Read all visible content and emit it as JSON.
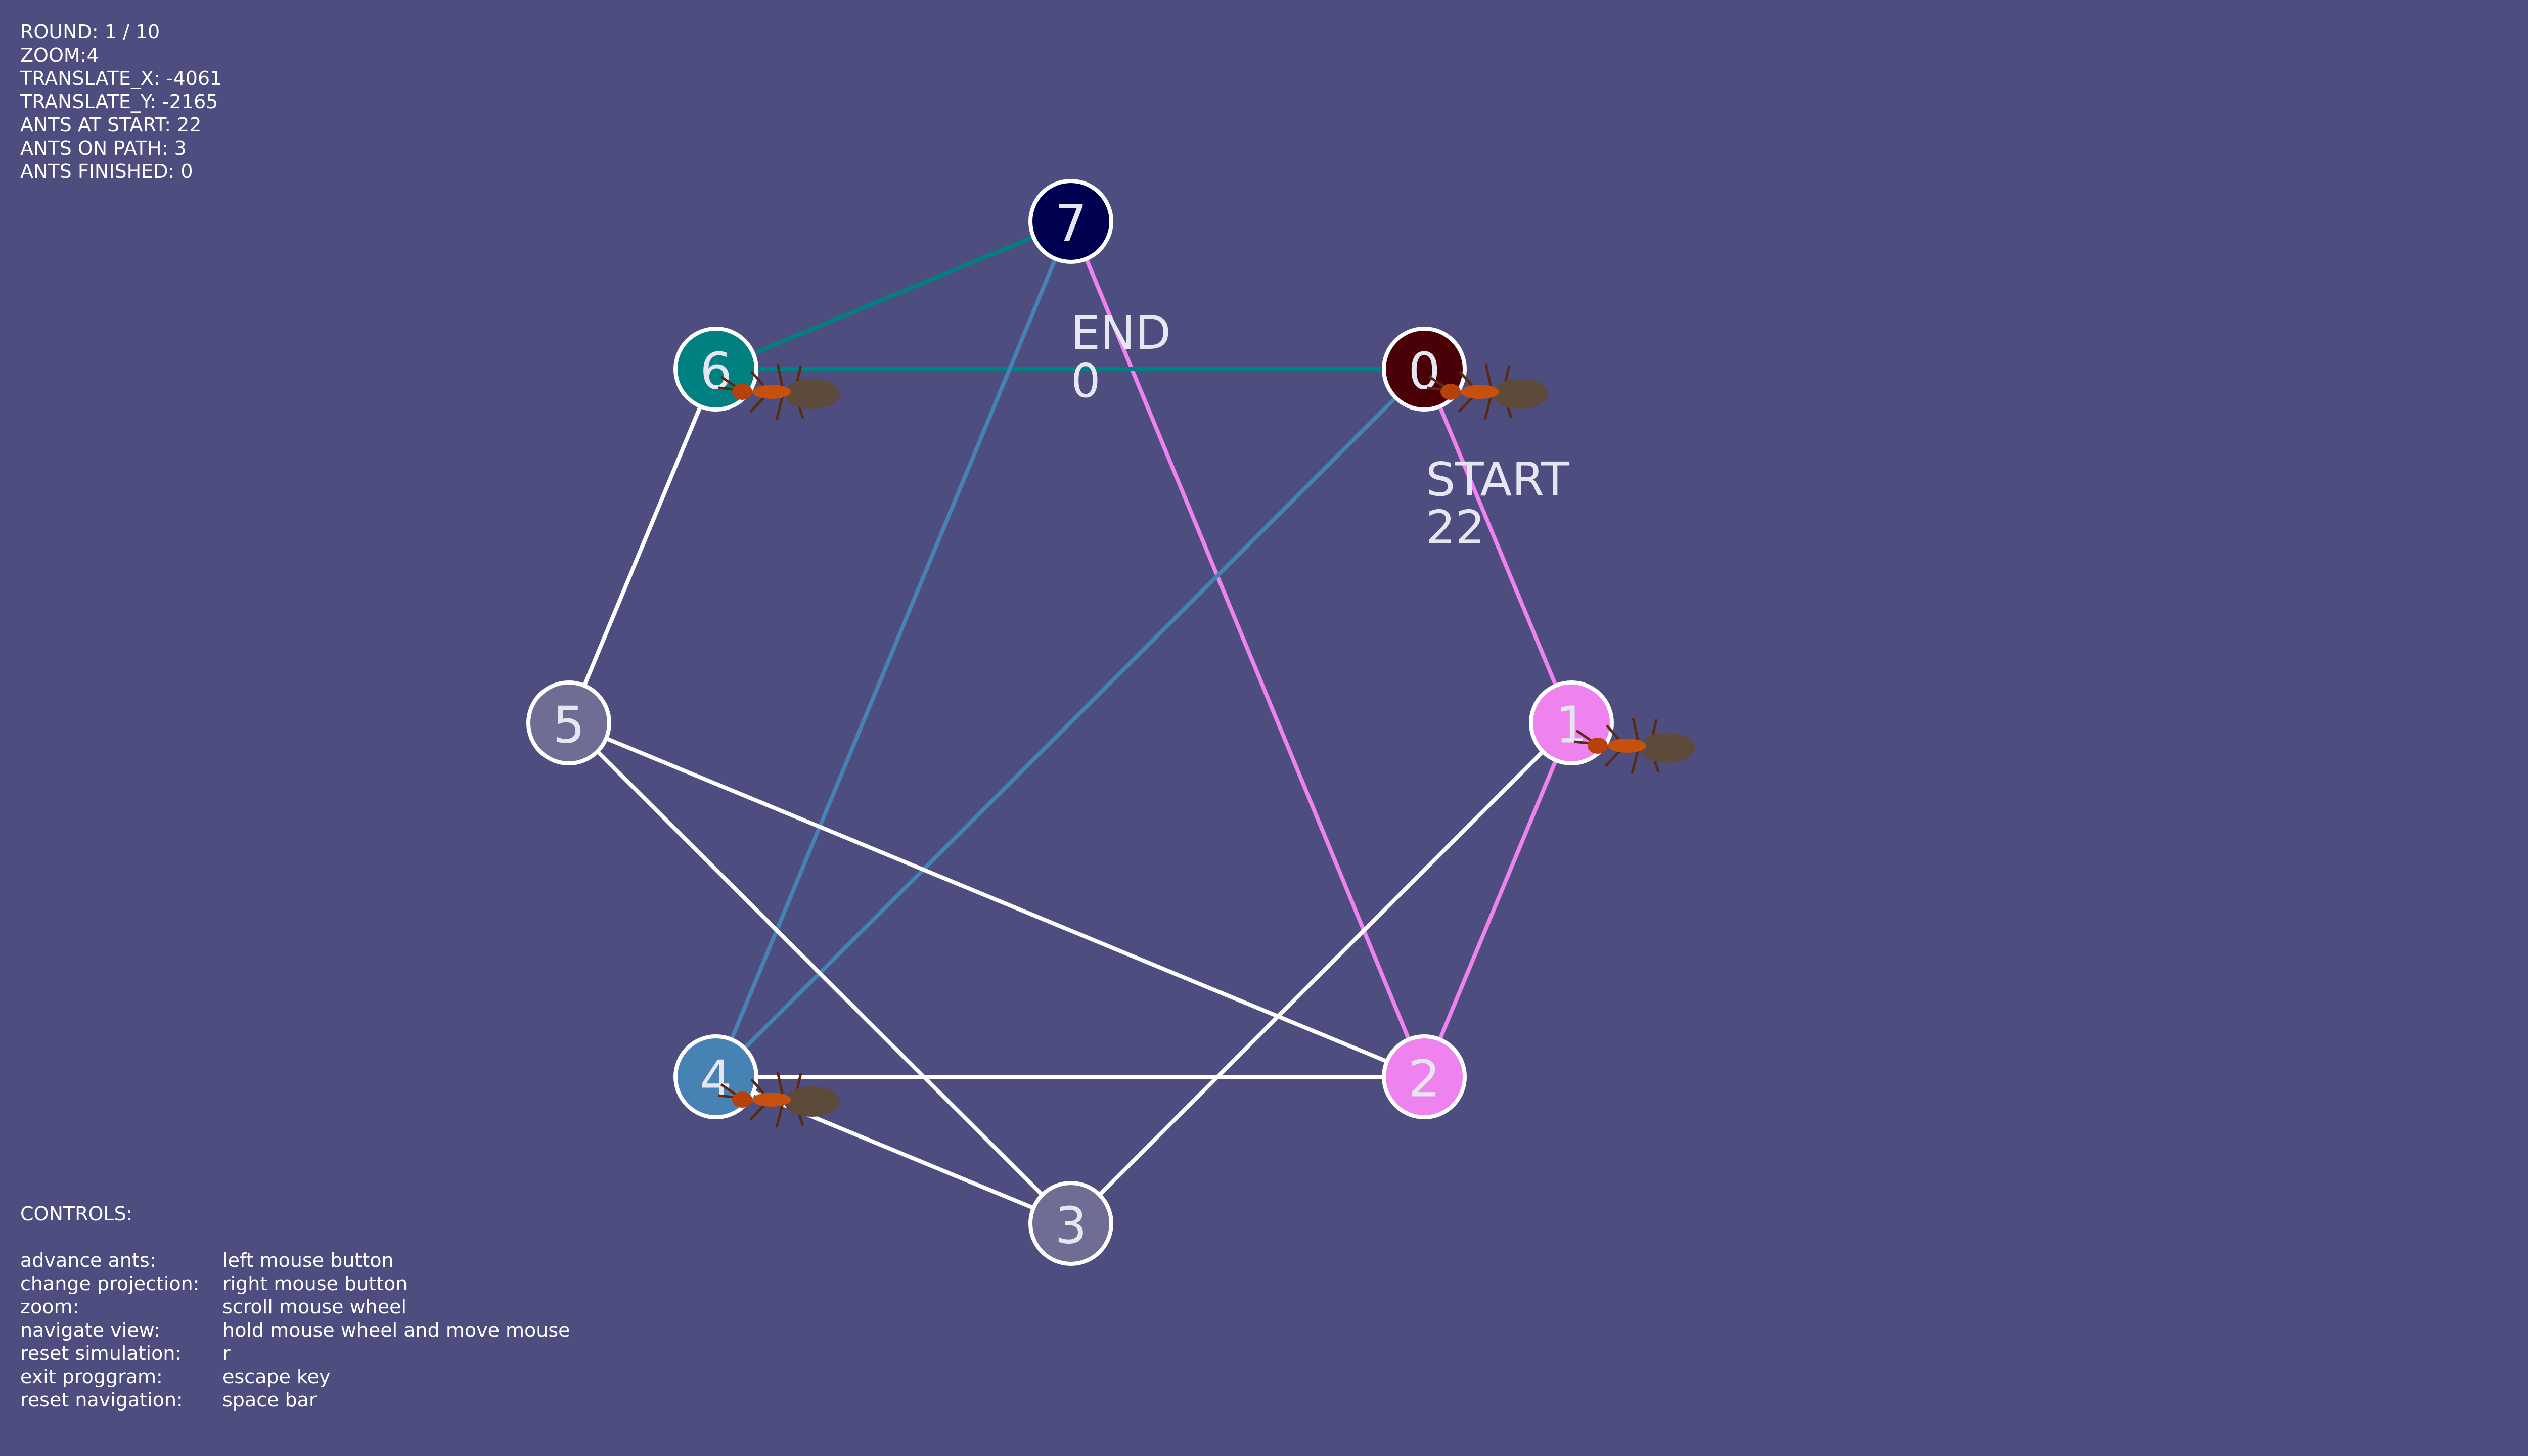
{
  "status": {
    "round": "ROUND: 1 / 10",
    "zoom": "ZOOM:4",
    "translate_x": "TRANSLATE_X: -4061",
    "translate_y": "TRANSLATE_Y: -2165",
    "ants_at_start": "ANTS AT START: 22",
    "ants_on_path": "ANTS ON PATH: 3",
    "ants_finished": "ANTS FINISHED: 0"
  },
  "controls": {
    "heading": "CONTROLS:",
    "rows": [
      {
        "key": "advance ants:",
        "value": "left mouse button"
      },
      {
        "key": "change projection:",
        "value": "right mouse button"
      },
      {
        "key": "zoom:",
        "value": "scroll mouse wheel"
      },
      {
        "key": "navigate view:",
        "value": "hold mouse wheel and move mouse"
      },
      {
        "key": "reset simulation:",
        "value": "r"
      },
      {
        "key": "exit proggram:",
        "value": "escape key"
      },
      {
        "key": "reset navigation:",
        "value": "space bar"
      }
    ]
  },
  "graph": {
    "start_label": "START",
    "start_count": "22",
    "end_label": "END",
    "end_count": "0",
    "nodes": [
      {
        "id": "0",
        "color": "#4a0006"
      },
      {
        "id": "1",
        "color": "#ee82ee"
      },
      {
        "id": "2",
        "color": "#ee82ee"
      },
      {
        "id": "3",
        "color": "#6f6d94"
      },
      {
        "id": "4",
        "color": "#4682b4"
      },
      {
        "id": "5",
        "color": "#6f6d94"
      },
      {
        "id": "6",
        "color": "#008080"
      },
      {
        "id": "7",
        "color": "#000050"
      }
    ],
    "edges": [
      {
        "from": "0",
        "to": "1",
        "color": "#ee82ee"
      },
      {
        "from": "1",
        "to": "2",
        "color": "#ee82ee"
      },
      {
        "from": "2",
        "to": "7",
        "color": "#ee82ee"
      },
      {
        "from": "7",
        "to": "6",
        "color": "#008080"
      },
      {
        "from": "6",
        "to": "0",
        "color": "#008080"
      },
      {
        "from": "7",
        "to": "4",
        "color": "#4682b4"
      },
      {
        "from": "0",
        "to": "4",
        "color": "#4682b4"
      },
      {
        "from": "6",
        "to": "5",
        "color": "#ffffff"
      },
      {
        "from": "5",
        "to": "2",
        "color": "#ffffff"
      },
      {
        "from": "5",
        "to": "3",
        "color": "#ffffff"
      },
      {
        "from": "4",
        "to": "2",
        "color": "#ffffff"
      },
      {
        "from": "4",
        "to": "3",
        "color": "#ffffff"
      },
      {
        "from": "3",
        "to": "1",
        "color": "#ffffff"
      }
    ],
    "ants_at_nodes": [
      "0",
      "1",
      "4",
      "6"
    ]
  }
}
